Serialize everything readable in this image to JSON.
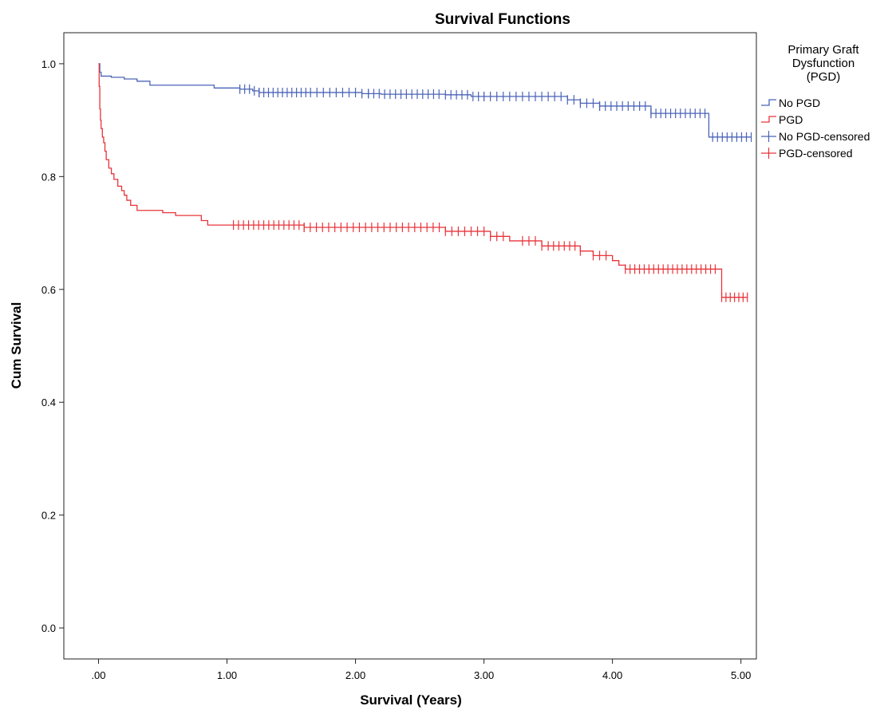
{
  "chart_data": {
    "type": "line",
    "title": "Survival Functions",
    "xlabel": "Survival (Years)",
    "ylabel": "Cum Survival",
    "xlim": [
      -0.27,
      5.12
    ],
    "ylim": [
      -0.055,
      1.055
    ],
    "x_ticks": [
      0,
      1,
      2,
      3,
      4,
      5
    ],
    "x_tick_labels": [
      ".00",
      "1.00",
      "2.00",
      "3.00",
      "4.00",
      "5.00"
    ],
    "y_ticks": [
      0,
      0.2,
      0.4,
      0.6,
      0.8,
      1.0
    ],
    "y_tick_labels": [
      "0.0",
      "0.2",
      "0.4",
      "0.6",
      "0.8",
      "1.0"
    ],
    "grid": false,
    "legend": {
      "title_lines": [
        "Primary Graft",
        "Dysfunction",
        "(PGD)"
      ],
      "placement": "right",
      "entries": [
        {
          "label": "No PGD",
          "color": "#4b63b8",
          "kind": "step"
        },
        {
          "label": "PGD",
          "color": "#e8343a",
          "kind": "step"
        },
        {
          "label": "No PGD-censored",
          "color": "#4b63b8",
          "kind": "censor"
        },
        {
          "label": "PGD-censored",
          "color": "#e8343a",
          "kind": "censor"
        }
      ]
    },
    "series": [
      {
        "name": "No PGD",
        "color": "#4b63b8",
        "steps": [
          [
            0,
            1.0
          ],
          [
            0.01,
            0.985
          ],
          [
            0.02,
            0.978
          ],
          [
            0.1,
            0.976
          ],
          [
            0.2,
            0.973
          ],
          [
            0.3,
            0.969
          ],
          [
            0.4,
            0.962
          ],
          [
            0.9,
            0.957
          ],
          [
            1.1,
            0.955
          ],
          [
            1.2,
            0.952
          ],
          [
            1.25,
            0.949
          ],
          [
            2.05,
            0.947
          ],
          [
            2.2,
            0.946
          ],
          [
            2.7,
            0.945
          ],
          [
            2.9,
            0.942
          ],
          [
            3.65,
            0.936
          ],
          [
            3.75,
            0.93
          ],
          [
            3.9,
            0.925
          ],
          [
            4.3,
            0.912
          ],
          [
            4.75,
            0.87
          ],
          [
            5.08,
            0.87
          ]
        ],
        "censor_ranges": [
          [
            1.1,
            1.25,
            5
          ],
          [
            1.25,
            1.65,
            12
          ],
          [
            1.7,
            2.1,
            9
          ],
          [
            2.1,
            2.65,
            14
          ],
          [
            2.7,
            3.0,
            8
          ],
          [
            3.0,
            3.65,
            14
          ],
          [
            3.7,
            3.9,
            5
          ],
          [
            3.9,
            4.3,
            10
          ],
          [
            4.3,
            4.72,
            12
          ],
          [
            4.78,
            5.08,
            9
          ]
        ]
      },
      {
        "name": "PGD",
        "color": "#e8343a",
        "steps": [
          [
            0,
            1.0
          ],
          [
            0.005,
            0.96
          ],
          [
            0.01,
            0.92
          ],
          [
            0.015,
            0.9
          ],
          [
            0.02,
            0.885
          ],
          [
            0.03,
            0.87
          ],
          [
            0.04,
            0.86
          ],
          [
            0.05,
            0.845
          ],
          [
            0.06,
            0.83
          ],
          [
            0.08,
            0.815
          ],
          [
            0.1,
            0.805
          ],
          [
            0.12,
            0.795
          ],
          [
            0.15,
            0.783
          ],
          [
            0.18,
            0.775
          ],
          [
            0.2,
            0.767
          ],
          [
            0.22,
            0.758
          ],
          [
            0.25,
            0.749
          ],
          [
            0.3,
            0.74
          ],
          [
            0.5,
            0.736
          ],
          [
            0.6,
            0.731
          ],
          [
            0.8,
            0.722
          ],
          [
            0.85,
            0.714
          ],
          [
            1.6,
            0.71
          ],
          [
            2.7,
            0.703
          ],
          [
            3.05,
            0.694
          ],
          [
            3.2,
            0.686
          ],
          [
            3.45,
            0.677
          ],
          [
            3.75,
            0.668
          ],
          [
            3.85,
            0.66
          ],
          [
            4.0,
            0.651
          ],
          [
            4.05,
            0.643
          ],
          [
            4.1,
            0.636
          ],
          [
            4.85,
            0.586
          ],
          [
            5.05,
            0.586
          ]
        ],
        "censor_ranges": [
          [
            1.05,
            1.6,
            15
          ],
          [
            1.6,
            2.7,
            24
          ],
          [
            2.75,
            3.0,
            6
          ],
          [
            3.05,
            3.15,
            3
          ],
          [
            3.3,
            3.45,
            4
          ],
          [
            3.5,
            3.75,
            7
          ],
          [
            3.85,
            3.95,
            3
          ],
          [
            4.1,
            4.8,
            20
          ],
          [
            4.85,
            5.05,
            7
          ]
        ]
      }
    ]
  }
}
